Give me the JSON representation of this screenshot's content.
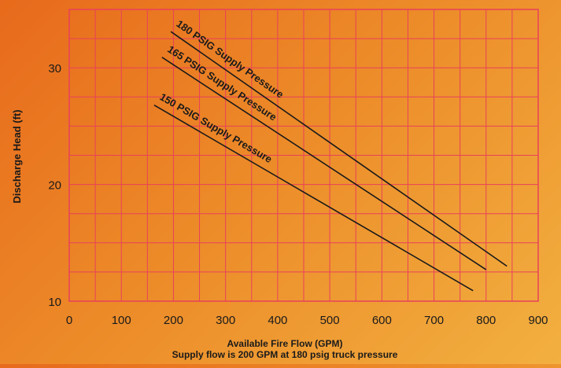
{
  "chart_data": {
    "type": "line",
    "title": "",
    "xlabel": "Available Fire Flow (GPM)",
    "ylabel": "Discharge Head (ft)",
    "subtitle": "Supply flow is 200 GPM at 180 psig truck pressure",
    "xlim": [
      0,
      900
    ],
    "ylim": [
      10,
      35
    ],
    "x_ticks": [
      "0",
      "100",
      "200",
      "300",
      "400",
      "500",
      "600",
      "700",
      "800",
      "900"
    ],
    "y_ticks": [
      {
        "value": 10,
        "label": "10"
      },
      {
        "value": 20,
        "label": "20"
      },
      {
        "value": 30,
        "label": "30"
      }
    ],
    "grid": true,
    "grid_color": "#e8415a",
    "line_color": "#1a1a1a",
    "series": [
      {
        "name": "180 PSIG Supply Pressure",
        "x": [
          195,
          840
        ],
        "y": [
          33.1,
          13.0
        ]
      },
      {
        "name": "165 PSIG Supply Pressure",
        "x": [
          178,
          800
        ],
        "y": [
          30.9,
          12.7
        ]
      },
      {
        "name": "150 PSIG Supply Pressure",
        "x": [
          163,
          775
        ],
        "y": [
          26.8,
          10.9
        ]
      }
    ]
  }
}
